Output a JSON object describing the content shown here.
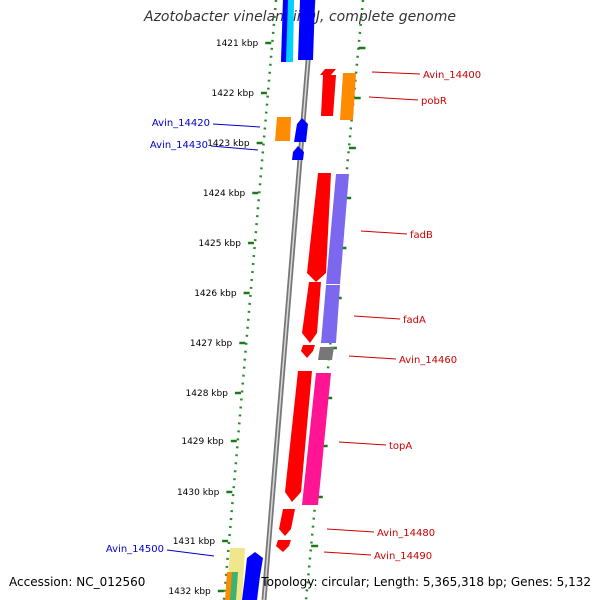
{
  "title": "Azotobacter vinelandii DJ, complete genome",
  "footer": {
    "accession": "Accession: NC_012560",
    "summary": "Topology: circular; Length: 5,365,318 bp; Genes: 5,132"
  },
  "ticks": [
    "1421 kbp",
    "1422 kbp",
    "1423 kbp",
    "1424 kbp",
    "1425 kbp",
    "1426 kbp",
    "1427 kbp",
    "1428 kbp",
    "1429 kbp",
    "1430 kbp",
    "1431 kbp",
    "1432 kbp"
  ],
  "gene_labels": {
    "right": [
      {
        "text": "Avin_14400"
      },
      {
        "text": "pobR"
      },
      {
        "text": "fadB"
      },
      {
        "text": "fadA"
      },
      {
        "text": "Avin_14460"
      },
      {
        "text": "topA"
      },
      {
        "text": "Avin_14480"
      },
      {
        "text": "Avin_14490"
      }
    ],
    "left": [
      {
        "text": "Avin_14420"
      },
      {
        "text": "Avin_14430"
      },
      {
        "text": "Avin_14500"
      }
    ]
  },
  "colors": {
    "backbone": "#888888",
    "tick": "#1a7a1a",
    "dots": "#2a8a2a",
    "right_label": "#cc0000",
    "left_label": "#0000cc",
    "red": "#ff0000",
    "orange": "#ff8c00",
    "blue": "#0000ff",
    "purple": "#7b68ee",
    "magenta": "#ff1493",
    "gray": "#777777",
    "cyan": "#00d0ff",
    "khaki": "#f0e68c",
    "green": "#3cb371"
  }
}
